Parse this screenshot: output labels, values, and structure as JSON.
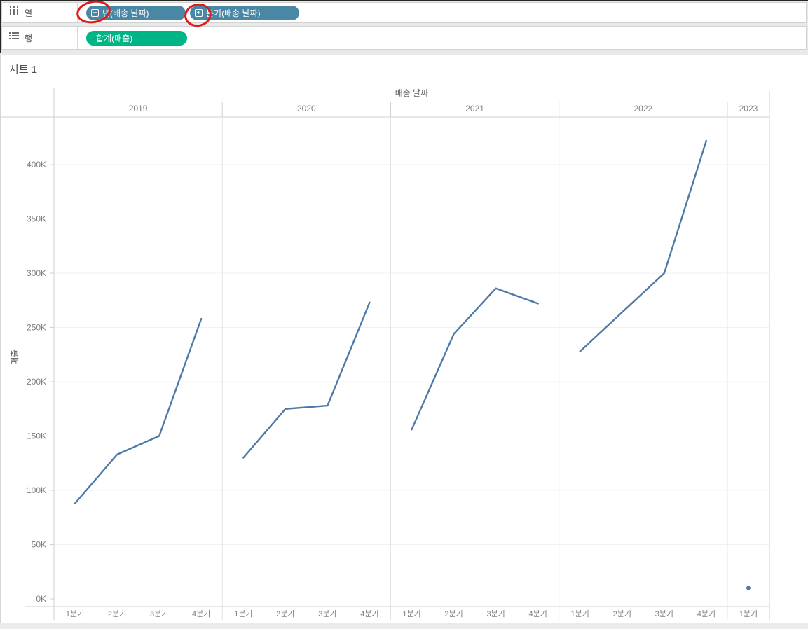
{
  "shelves": {
    "columns": {
      "label": "열",
      "pills": [
        {
          "label": "년(배송 날짜)",
          "icon_glyph": "−",
          "color": "#4a87a5"
        },
        {
          "label": "분기(배송 날짜)",
          "icon_glyph": "+",
          "color": "#4a87a5"
        }
      ]
    },
    "rows": {
      "label": "행",
      "pills": [
        {
          "label": "합계(매출)",
          "color": "#00b585"
        }
      ]
    }
  },
  "sheet": {
    "title": "시트 1"
  },
  "chart_data": {
    "type": "line",
    "title": "시트 1",
    "field_label": "배송 날짜",
    "ylabel": "매출",
    "line_color": "#4e79a7",
    "grid": true,
    "ylim": [
      0,
      443000
    ],
    "y_ticks": [
      {
        "label": "0K",
        "value": 0
      },
      {
        "label": "50K",
        "value": 50000
      },
      {
        "label": "100K",
        "value": 100000
      },
      {
        "label": "150K",
        "value": 150000
      },
      {
        "label": "200K",
        "value": 200000
      },
      {
        "label": "250K",
        "value": 250000
      },
      {
        "label": "300K",
        "value": 300000
      },
      {
        "label": "350K",
        "value": 350000
      },
      {
        "label": "400K",
        "value": 400000
      }
    ],
    "panels": [
      {
        "year": "2019",
        "categories": [
          "1분기",
          "2분기",
          "3분기",
          "4분기"
        ],
        "values": [
          88000,
          133000,
          150000,
          258000
        ]
      },
      {
        "year": "2020",
        "categories": [
          "1분기",
          "2분기",
          "3분기",
          "4분기"
        ],
        "values": [
          130000,
          175000,
          178000,
          273000
        ]
      },
      {
        "year": "2021",
        "categories": [
          "1분기",
          "2분기",
          "3분기",
          "4분기"
        ],
        "values": [
          156000,
          244000,
          286000,
          272000
        ]
      },
      {
        "year": "2022",
        "categories": [
          "1분기",
          "2분기",
          "3분기",
          "4분기"
        ],
        "values": [
          228000,
          264000,
          300000,
          422000
        ]
      },
      {
        "year": "2023",
        "categories": [
          "1분기"
        ],
        "values": [
          10000
        ]
      }
    ]
  },
  "annotations": {
    "color": "#df1a1a",
    "items": [
      {
        "name": "circle-around-collapse-icon"
      },
      {
        "name": "circle-around-expand-icon"
      }
    ]
  }
}
